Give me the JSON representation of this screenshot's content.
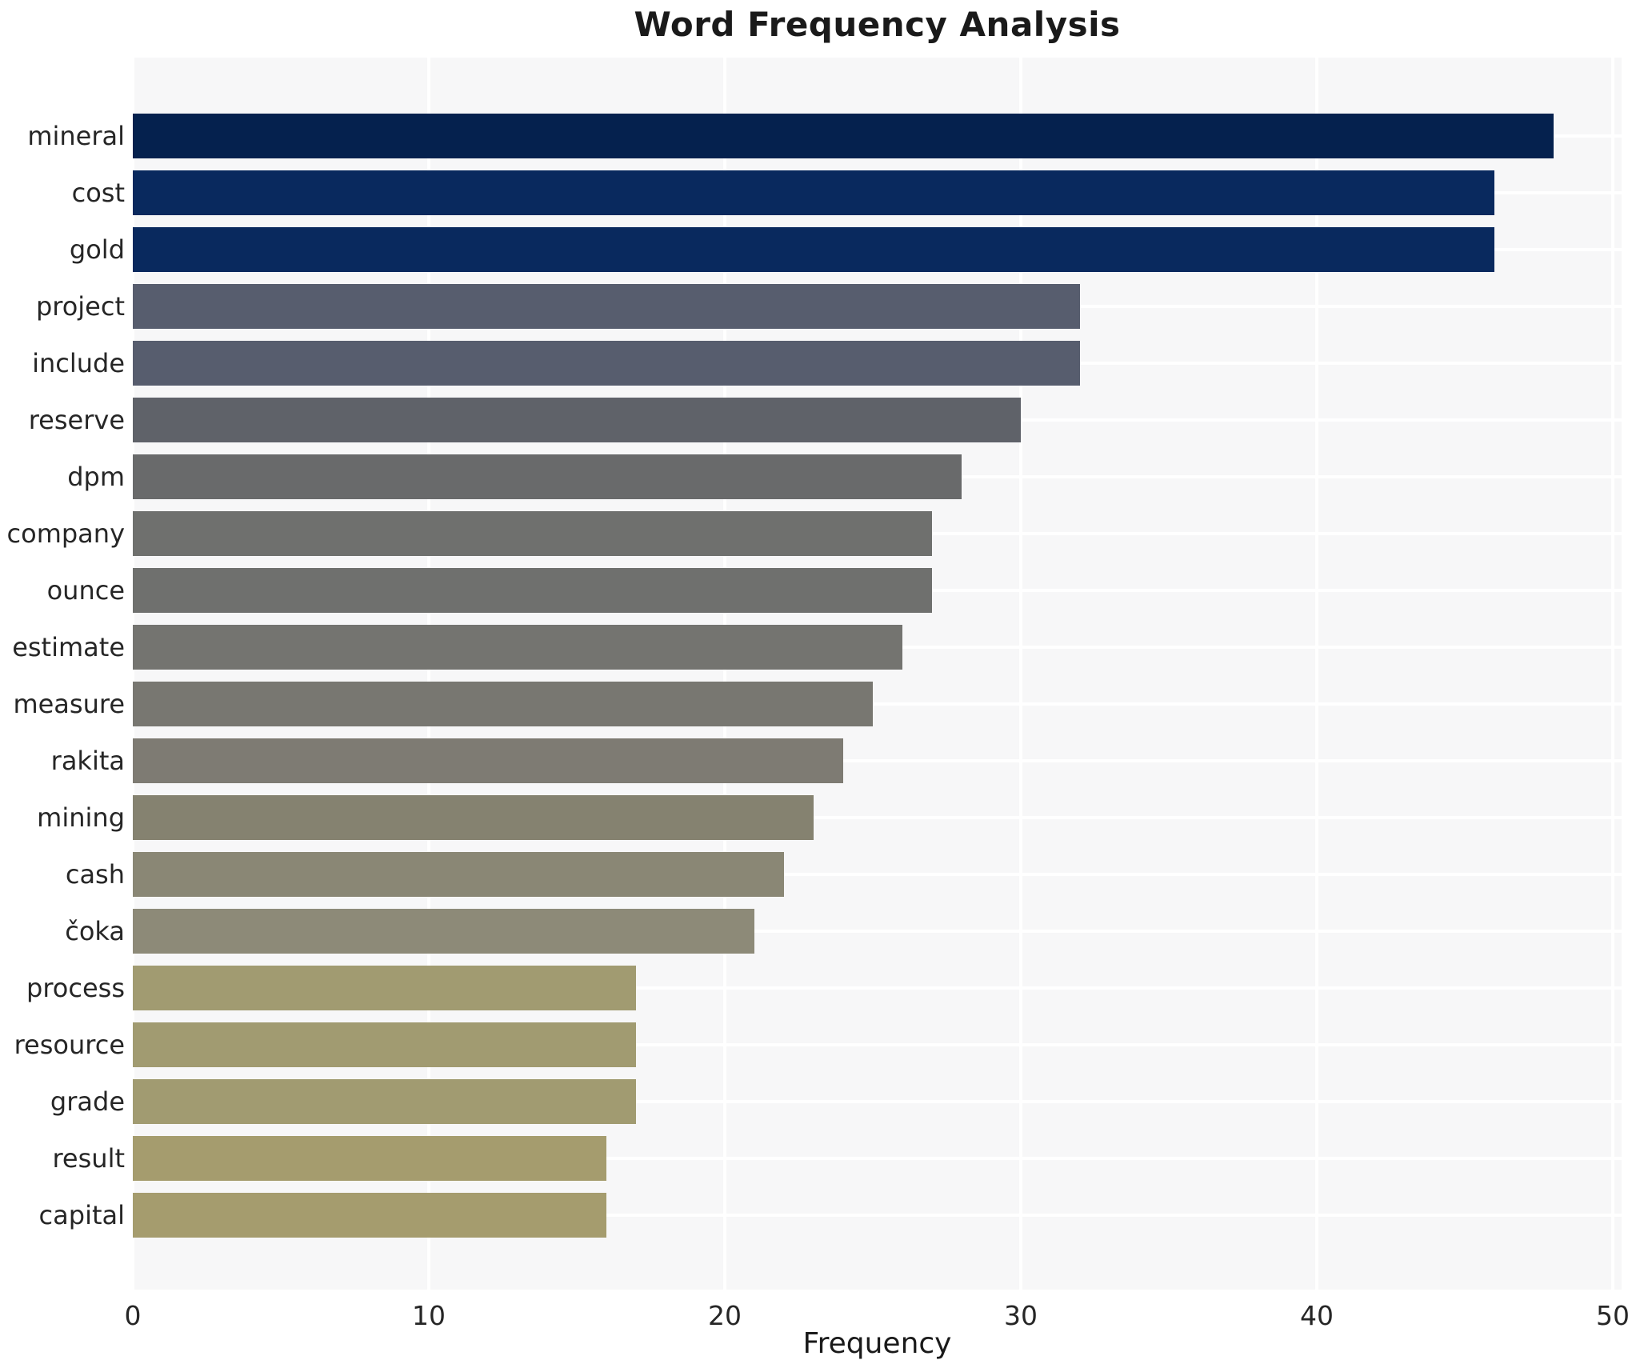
{
  "title": "Word Frequency Analysis",
  "chart_data": {
    "type": "bar",
    "orientation": "horizontal",
    "title": "Word Frequency Analysis",
    "xlabel": "Frequency",
    "ylabel": "",
    "xlim": [
      0,
      50.3
    ],
    "x_ticks": [
      0,
      10,
      20,
      30,
      40,
      50
    ],
    "grid": true,
    "legend": false,
    "plot_background": "#f7f7f8",
    "gridline_color": "#ffffff",
    "categories": [
      "mineral",
      "cost",
      "gold",
      "project",
      "include",
      "reserve",
      "dpm",
      "company",
      "ounce",
      "estimate",
      "measure",
      "rakita",
      "mining",
      "cash",
      "čoka",
      "process",
      "resource",
      "grade",
      "result",
      "capital"
    ],
    "values": [
      48,
      46,
      46,
      32,
      32,
      30,
      28,
      27,
      27,
      26,
      25,
      24,
      23,
      22,
      21,
      17,
      17,
      17,
      16,
      16
    ],
    "bar_colors": [
      "#05214e",
      "#09295e",
      "#09295e",
      "#575d6e",
      "#575d6e",
      "#5f6269",
      "#696a6b",
      "#6f706e",
      "#6f706e",
      "#747470",
      "#787771",
      "#7e7b73",
      "#858270",
      "#8a8775",
      "#8d8a78",
      "#a19b71",
      "#a19b71",
      "#a19b71",
      "#a59c6e",
      "#a59c6e"
    ]
  }
}
